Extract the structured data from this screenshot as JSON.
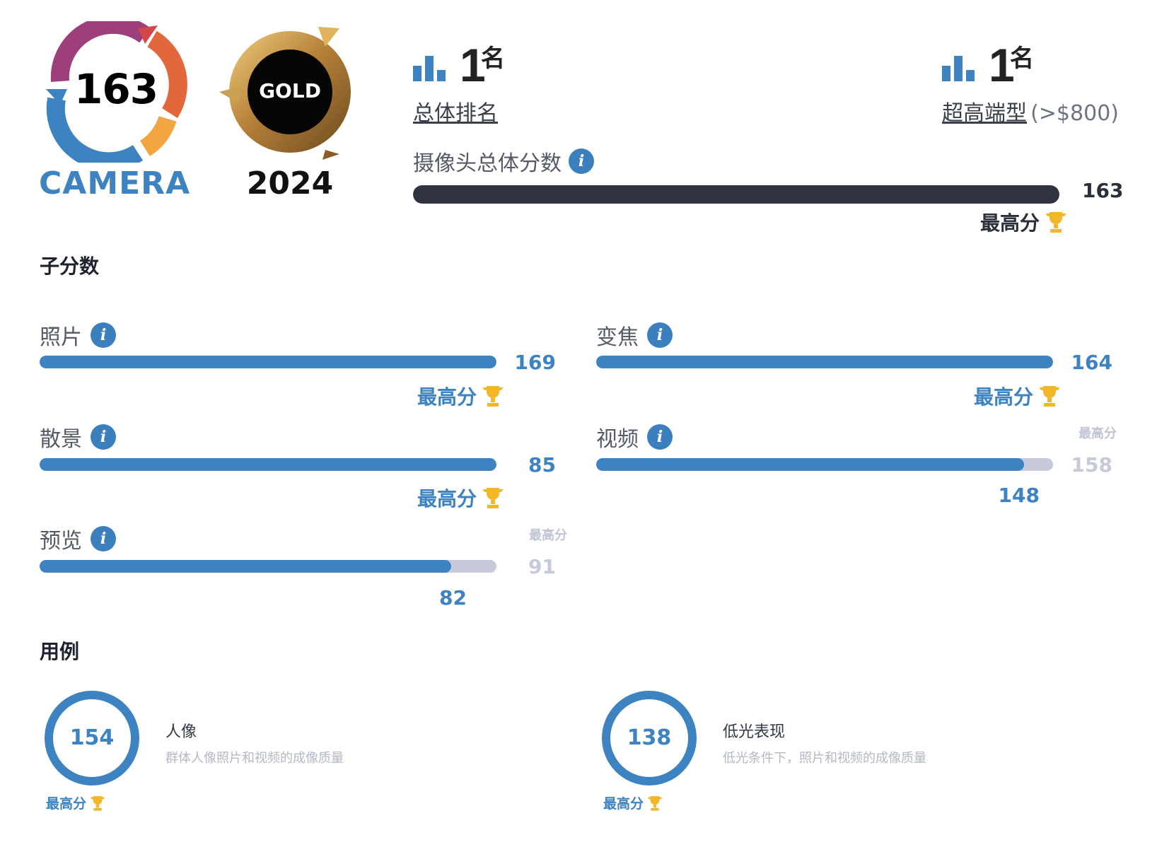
{
  "badges": {
    "camera_score": "163",
    "camera_label": "CAMERA",
    "gold_label": "GOLD",
    "gold_year": "2024"
  },
  "rank_overall": {
    "number": "1",
    "suffix": "名",
    "label": "总体排名"
  },
  "rank_segment": {
    "number": "1",
    "suffix": "名",
    "label": "超高端型",
    "extra": "(>$800)"
  },
  "overall_score": {
    "label": "摄像头总体分数",
    "score": "163",
    "best_label": "最高分",
    "progress": 1.0
  },
  "subscores": {
    "title": "子分数",
    "photo": {
      "label": "照片",
      "score": "169",
      "best_label": "最高分",
      "progress": 1.0
    },
    "zoom": {
      "label": "变焦",
      "score": "164",
      "best_label": "最高分",
      "progress": 1.0
    },
    "bokeh": {
      "label": "散景",
      "score": "85",
      "best_label": "最高分",
      "progress": 1.0
    },
    "video": {
      "label": "视频",
      "score": "148",
      "best_label": "最高分",
      "best_score": "158",
      "progress": 0.937
    },
    "preview": {
      "label": "预览",
      "score": "82",
      "best_label": "最高分",
      "best_score": "91",
      "progress": 0.901
    }
  },
  "use_cases": {
    "title": "用例",
    "portrait": {
      "score": "154",
      "title": "人像",
      "desc": "群体人像照片和视频的成像质量",
      "best_label": "最高分"
    },
    "lowlight": {
      "score": "138",
      "title": "低光表现",
      "desc": "低光条件下，照片和视频的成像质量",
      "best_label": "最高分"
    }
  },
  "colors": {
    "accent_blue": "#3d82c1",
    "dark_bar": "#2f333f",
    "track_gray": "#c6cadb",
    "trophy_gold": "#f3b72a"
  }
}
